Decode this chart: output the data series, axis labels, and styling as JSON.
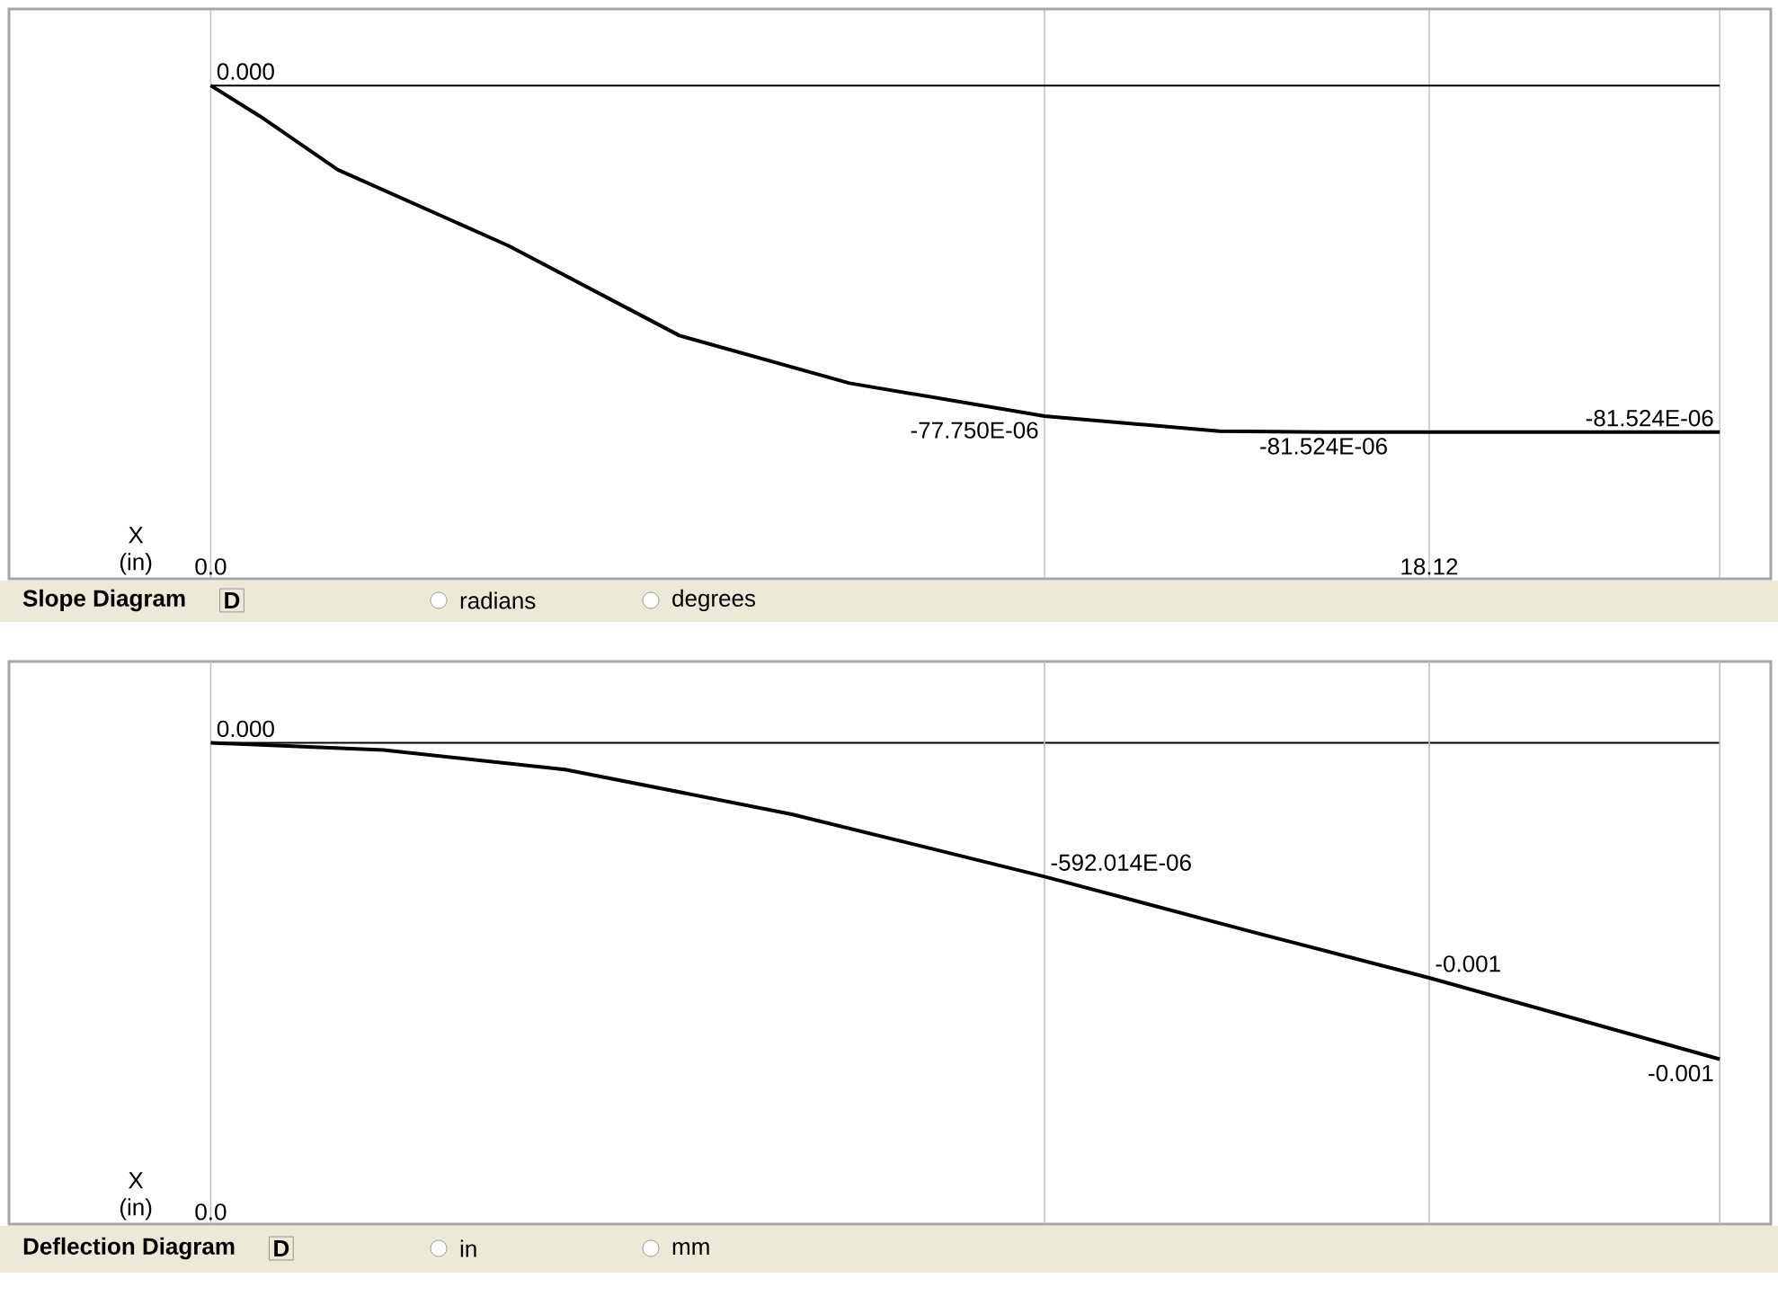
{
  "chart_data": [
    {
      "type": "line",
      "title": "Slope Diagram",
      "xlabel": "X (in)",
      "xlim": [
        -3.0,
        23.2
      ],
      "ylim": [
        -0.000116,
        1.8e-05
      ],
      "xticks": [
        {
          "value": 0,
          "label": "0.0"
        },
        {
          "value": 12.4,
          "label": null
        },
        {
          "value": 18.12,
          "label": "18.12"
        },
        {
          "value": 22.44,
          "label": null
        }
      ],
      "grid": "x",
      "ref_lines": [
        {
          "axis": "y",
          "value": 0
        }
      ],
      "annotations": [
        "D",
        "radians",
        "degrees"
      ],
      "series": [
        {
          "color": "#000000",
          "x": [
            0,
            0.73,
            1.89,
            4.43,
            6.97,
            9.5,
            12.4,
            15.0,
            16.55,
            22.44
          ],
          "values": [
            0,
            -7.2e-06,
            -1.98e-05,
            -3.77e-05,
            -5.88e-05,
            -7e-05,
            -7.775e-05,
            -8.13e-05,
            -8.1524e-05,
            -8.1524e-05
          ],
          "value_labels": [
            "0.000",
            null,
            null,
            null,
            null,
            null,
            "-77.750E-06",
            null,
            "-81.524E-06",
            "-81.524E-06"
          ]
        }
      ]
    },
    {
      "type": "line",
      "title": "Deflection Diagram",
      "xlabel": "X (in)",
      "xlim": [
        -3.0,
        23.2
      ],
      "ylim": [
        -0.00213,
        0.00036
      ],
      "ref_lines": [
        {
          "axis": "y",
          "value": 0
        },
        {
          "axis": "x",
          "value": 0,
          "color": "#c0c0c0"
        },
        {
          "axis": "x",
          "value": 12.4,
          "color": "#c0c0c0"
        },
        {
          "axis": "x",
          "value": 18.12,
          "color": "#c0c0c0"
        },
        {
          "axis": "x",
          "value": 22.44,
          "color": "#c0c0c0"
        }
      ],
      "annotations": [
        "D",
        "in",
        "mm",
        "0.0"
      ],
      "series": [
        {
          "color": "#000000",
          "x": [
            0,
            2.57,
            5.27,
            8.64,
            12.4,
            15.4,
            18.12,
            22.44
          ],
          "values": [
            0,
            -3.2e-05,
            -0.000118,
            -0.000316,
            -0.000592014,
            -0.00083,
            -0.00104,
            -0.0014
          ],
          "value_labels": [
            "0.000",
            null,
            null,
            null,
            "-592.014E-06",
            null,
            "-0.001",
            "-0.001"
          ]
        }
      ]
    }
  ]
}
